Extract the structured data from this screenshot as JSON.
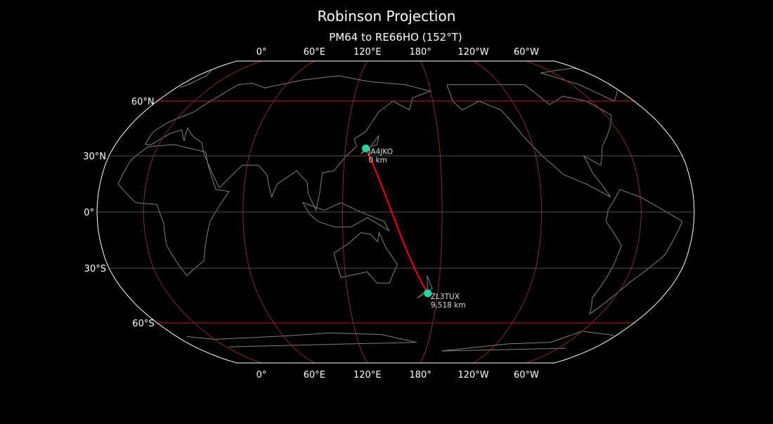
{
  "title": "Robinson Projection",
  "subtitle": "PM64 to RE66HO (152°T)",
  "map": {
    "projection": "robinson",
    "central_longitude": 152,
    "background": "#000000",
    "coastline_color": "#808080",
    "graticule_meridian_color": "#8b2a2a",
    "graticule_parallel_colors": {
      "60": "#b22222",
      "30": "#555555",
      "0": "#555555"
    },
    "path_color": "#ff0000",
    "marker_color": "#1ed8a0",
    "meridians": [
      0,
      60,
      120,
      180,
      -120,
      -60
    ],
    "parallels": [
      60,
      30,
      0,
      -30,
      -60
    ],
    "lon_labels": [
      "0°",
      "60°E",
      "120°E",
      "180°",
      "120°W",
      "60°W"
    ],
    "lat_labels": [
      "60°N",
      "30°N",
      "0°",
      "30°S",
      "60°S"
    ]
  },
  "stations": [
    {
      "call": "JA4JKO",
      "distance": "0 km",
      "lat": 34.0,
      "lon": 133.0
    },
    {
      "call": "ZL3TUX",
      "distance": "9,518 km",
      "lat": -43.5,
      "lon": 173.5
    }
  ]
}
